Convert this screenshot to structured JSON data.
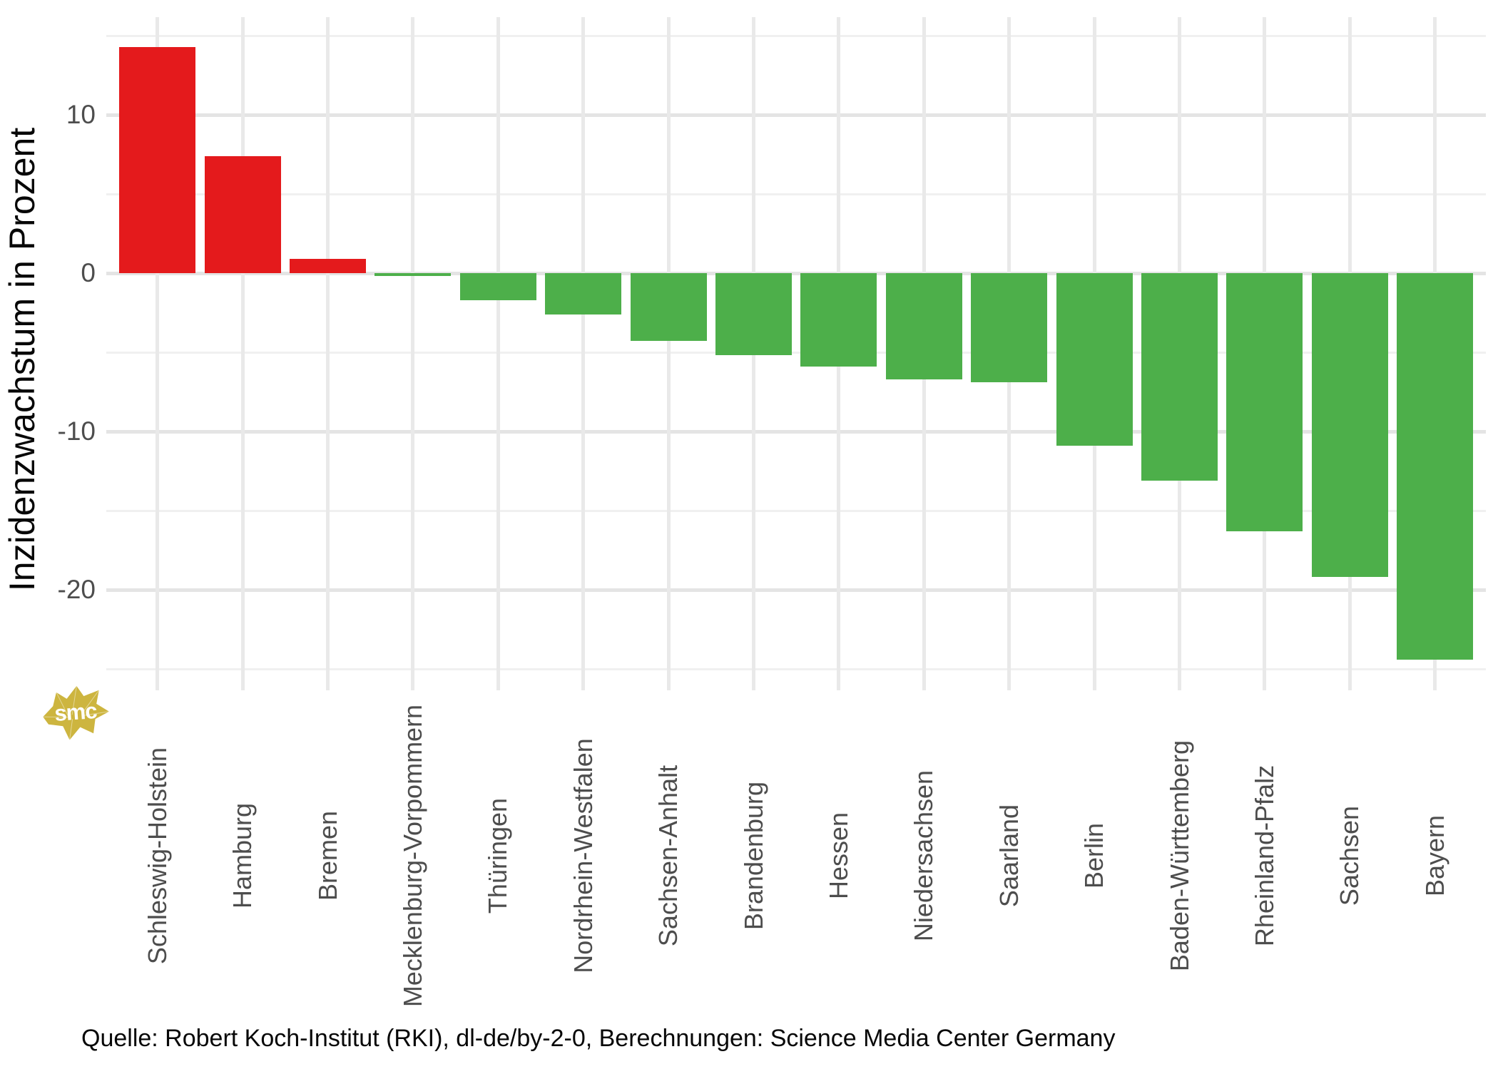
{
  "chart_data": {
    "type": "bar",
    "title": "",
    "xlabel": "",
    "ylabel": "Inzidenzwachstum in Prozent",
    "categories": [
      "Schleswig-Holstein",
      "Hamburg",
      "Bremen",
      "Mecklenburg-Vorpommern",
      "Thüringen",
      "Nordrhein-Westfalen",
      "Sachsen-Anhalt",
      "Brandenburg",
      "Hessen",
      "Niedersachsen",
      "Saarland",
      "Berlin",
      "Baden-Württemberg",
      "Rheinland-Pfalz",
      "Sachsen",
      "Bayern"
    ],
    "values": [
      14.3,
      7.4,
      0.9,
      -0.2,
      -1.7,
      -2.6,
      -4.3,
      -5.2,
      -5.9,
      -6.7,
      -6.9,
      -10.9,
      -13.1,
      -16.3,
      -19.2,
      -24.4
    ],
    "y_ticks": [
      10,
      0,
      -10,
      -20
    ],
    "y_minor_ticks": [
      15,
      5,
      -5,
      -15,
      -25
    ],
    "ylim": [
      -26.3,
      16.2
    ],
    "grid": "major-and-minor, light gray on white",
    "legend": "none",
    "colors": {
      "positive_bar": "#e41a1c",
      "negative_bar": "#4daf4a",
      "grid_major": "#e4e4e4",
      "grid_minor": "#f0f0f0",
      "axis_text": "#4d4d4d",
      "title_text": "#070707"
    }
  },
  "caption": {
    "text": "Quelle: Robert Koch-Institut (RKI), dl-de/by-2-0, Berechnungen: Science Media Center Germany"
  },
  "logo": {
    "text": "smc",
    "color": "#cdb53f"
  }
}
